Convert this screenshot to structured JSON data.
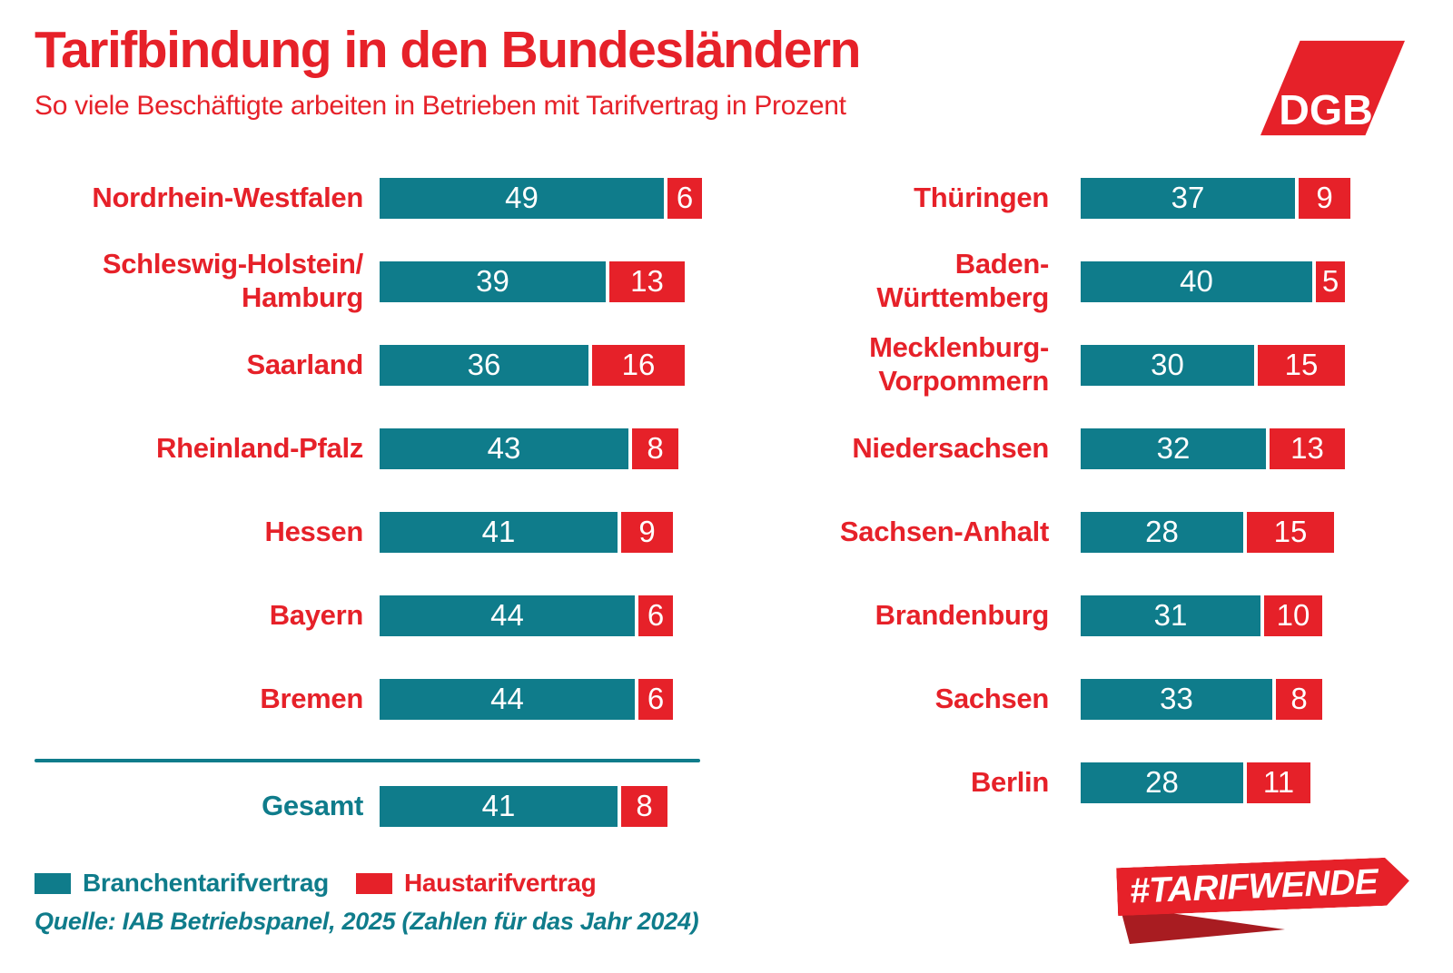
{
  "title": "Tarifbindung in den Bundesländern",
  "subtitle": "So viele Beschäftigte arbeiten in Betrieben mit Tarifvertrag in Prozent",
  "logo_text": "DGB",
  "colors": {
    "red": "#e62129",
    "teal": "#0f7c8b",
    "fold_dark_red": "#a81c21",
    "background": "#ffffff",
    "bar_value_text": "#ffffff"
  },
  "chart_data": {
    "type": "bar",
    "orientation": "horizontal",
    "stacked": true,
    "value_unit": "percent",
    "series_names": [
      "Branchentarifvertrag",
      "Haustarifvertrag"
    ],
    "xlim": [
      0,
      55
    ],
    "columns": {
      "left": [
        {
          "label": "Nordrhein-Westfalen",
          "values": [
            49,
            6
          ]
        },
        {
          "label": "Schleswig-Holstein/\nHamburg",
          "values": [
            39,
            13
          ]
        },
        {
          "label": "Saarland",
          "values": [
            36,
            16
          ]
        },
        {
          "label": "Rheinland-Pfalz",
          "values": [
            43,
            8
          ]
        },
        {
          "label": "Hessen",
          "values": [
            41,
            9
          ]
        },
        {
          "label": "Bayern",
          "values": [
            44,
            6
          ]
        },
        {
          "label": "Bremen",
          "values": [
            44,
            6
          ]
        },
        {
          "label": "Gesamt",
          "values": [
            41,
            8
          ],
          "is_total": true,
          "divider_before": true
        }
      ],
      "right": [
        {
          "label": "Thüringen",
          "values": [
            37,
            9
          ]
        },
        {
          "label": "Baden-\nWürttemberg",
          "values": [
            40,
            5
          ]
        },
        {
          "label": "Mecklenburg-\nVorpommern",
          "values": [
            30,
            15
          ]
        },
        {
          "label": "Niedersachsen",
          "values": [
            32,
            13
          ]
        },
        {
          "label": "Sachsen-Anhalt",
          "values": [
            28,
            15
          ]
        },
        {
          "label": "Brandenburg",
          "values": [
            31,
            10
          ]
        },
        {
          "label": "Sachsen",
          "values": [
            33,
            8
          ]
        },
        {
          "label": "Berlin",
          "values": [
            28,
            11
          ]
        }
      ]
    }
  },
  "legend": {
    "items": [
      {
        "label": "Branchentarifvertrag",
        "color": "#0f7c8b"
      },
      {
        "label": "Haustarifvertrag",
        "color": "#e62129"
      }
    ]
  },
  "source": "Quelle: IAB Betriebspanel, 2025 (Zahlen für das Jahr 2024)",
  "banner_text": "#TARIFWENDE"
}
